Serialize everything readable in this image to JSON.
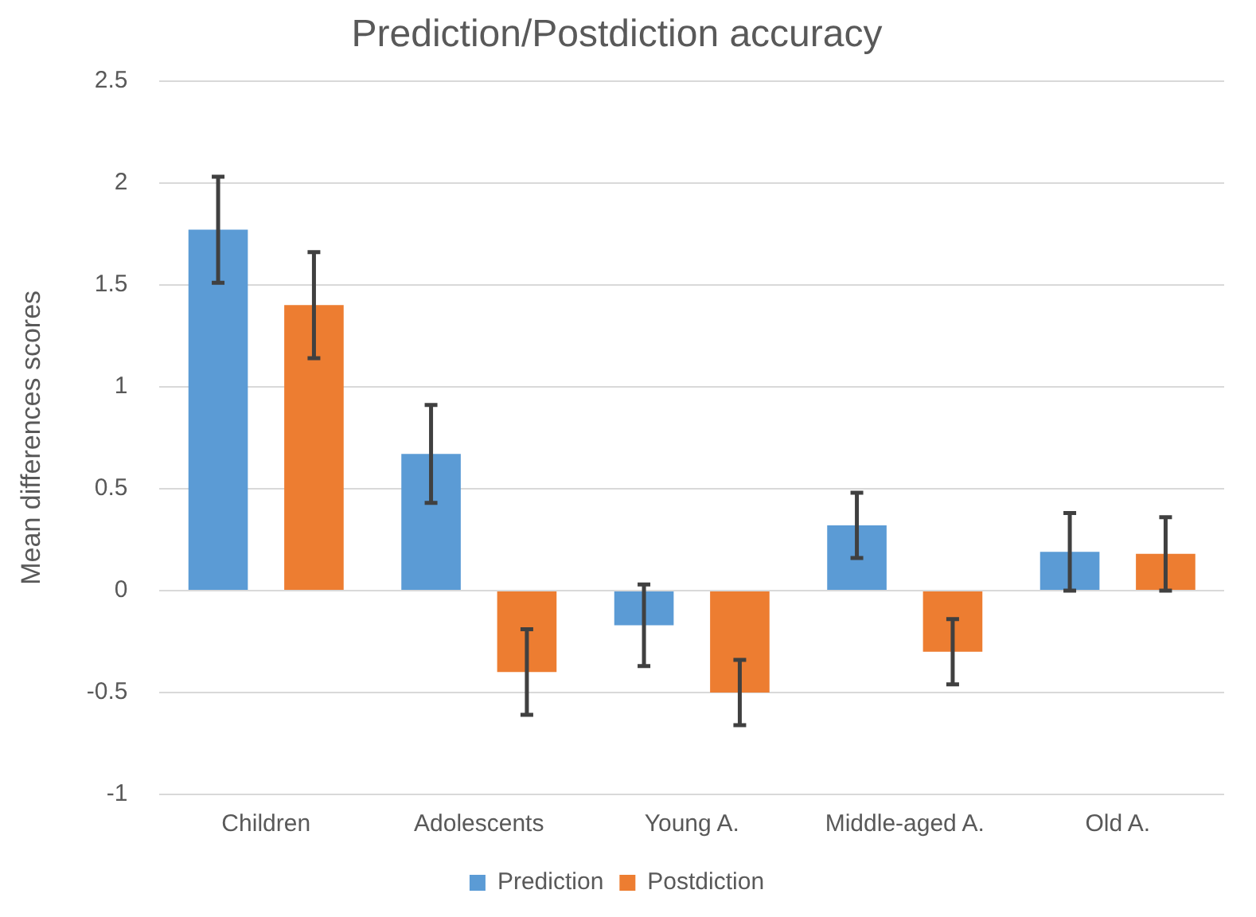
{
  "chart_data": {
    "type": "bar",
    "title": "Prediction/Postdiction accuracy",
    "ylabel": "Mean differences scores",
    "categories": [
      "Children",
      "Adolescents",
      "Young A.",
      "Middle-aged A.",
      "Old A."
    ],
    "series": [
      {
        "name": "Prediction",
        "color": "#5b9bd5",
        "values": [
          1.77,
          0.67,
          -0.17,
          0.32,
          0.19
        ],
        "errors": [
          0.26,
          0.24,
          0.2,
          0.16,
          0.19
        ]
      },
      {
        "name": "Postdiction",
        "color": "#ed7d31",
        "values": [
          1.4,
          -0.4,
          -0.5,
          -0.3,
          0.18
        ],
        "errors": [
          0.26,
          0.21,
          0.16,
          0.16,
          0.18
        ]
      }
    ],
    "ylim": [
      -1,
      2.5
    ],
    "yticks": [
      -1,
      -0.5,
      0,
      0.5,
      1,
      1.5,
      2,
      2.5
    ],
    "grid": "y",
    "legend": "bottom"
  }
}
